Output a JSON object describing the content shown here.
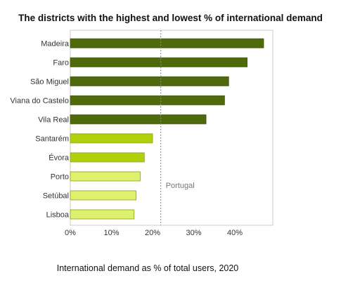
{
  "chart_data": {
    "type": "bar",
    "orientation": "horizontal",
    "title": "The districts with the highest and lowest % of international demand",
    "xlabel": "International demand as % of total users, 2020",
    "ylabel": "",
    "categories": [
      "Madeira",
      "Faro",
      "São Miguel",
      "Viana do Castelo",
      "Vila Real",
      "Santarém",
      "Évora",
      "Porto",
      "Setúbal",
      "Lisboa"
    ],
    "values": [
      47,
      43,
      38.5,
      37.5,
      33,
      20,
      18,
      17,
      16,
      15.5
    ],
    "x_ticks": [
      "0%",
      "10%",
      "20%",
      "30%",
      "40%"
    ],
    "xlim": [
      0,
      49
    ],
    "grid": false,
    "reference_line": {
      "label": "Portugal",
      "value": 22
    },
    "colors": {
      "highest": "#4f6a0b",
      "middle": "#afd00a",
      "lowest": "#dff06c",
      "bar_border_light": "#8aa02a",
      "reference_line": "#888888",
      "axis": "#cccccc"
    },
    "bar_color_groups": [
      "highest",
      "highest",
      "highest",
      "highest",
      "highest",
      "middle",
      "middle",
      "lowest",
      "lowest",
      "lowest"
    ]
  }
}
